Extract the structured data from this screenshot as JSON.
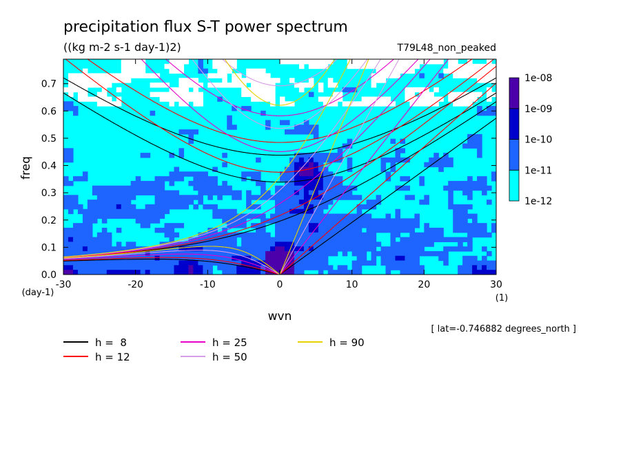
{
  "chart_data": {
    "type": "heatmap",
    "title": "precipitation flux S-T power spectrum",
    "subtitle": "((kg m-2 s-1 day-1)2)",
    "run_label": "T79L48_non_peaked",
    "xlabel": "wvn",
    "x_unit": "(1)",
    "ylabel": "freq",
    "y_unit": "(day-1)",
    "location": "[ lat=-0.746882 degrees_north ]",
    "xlim": [
      -30,
      30
    ],
    "ylim": [
      0,
      0.79
    ],
    "x_ticks": [
      -30,
      -20,
      -10,
      0,
      10,
      20,
      30
    ],
    "x_tick_labels": [
      "-30",
      "-20",
      "-10",
      "0",
      "10",
      "20",
      "30"
    ],
    "y_ticks": [
      0,
      0.1,
      0.2,
      0.3,
      0.4,
      0.5,
      0.6,
      0.7
    ],
    "y_tick_labels": [
      "0.0",
      "0.1",
      "0.2",
      "0.3",
      "0.4",
      "0.5",
      "0.6",
      "0.7"
    ],
    "colorbar": {
      "levels": [
        "1e-12",
        "1e-11",
        "1e-10",
        "1e-09",
        "1e-08"
      ],
      "colors": [
        "#00ffff",
        "#1e64ff",
        "#0000cd",
        "#4b00aa"
      ]
    },
    "background_color": "#00ffff",
    "dispersion_curves": [
      {
        "name": "h =  8",
        "label": "h =  8",
        "h": 8,
        "color": "#000000"
      },
      {
        "name": "h = 12",
        "label": "h = 12",
        "h": 12,
        "color": "#ff0000"
      },
      {
        "name": "h = 25",
        "label": "h = 25",
        "h": 25,
        "color": "#e600c8"
      },
      {
        "name": "h = 50",
        "label": "h = 50",
        "h": 50,
        "color": "#d89be6"
      },
      {
        "name": "h = 90",
        "label": "h = 90",
        "h": 90,
        "color": "#e6d200"
      }
    ],
    "curve_families": [
      "kelvin",
      "mrg",
      "inertia_gravity_n1",
      "inertia_gravity_n2",
      "rossby_n1"
    ]
  }
}
